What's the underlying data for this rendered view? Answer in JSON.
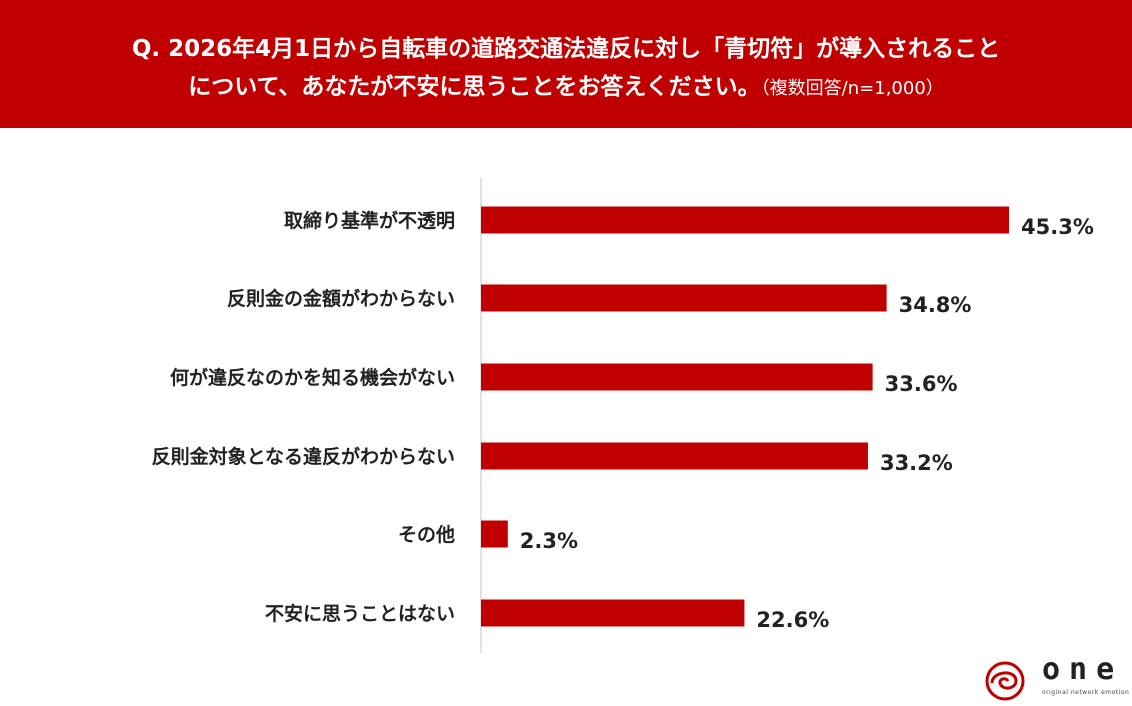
{
  "header": {
    "line1": "Q. 2026年4月1日から自転車の道路交通法違反に対し「青切符」が導入されること",
    "line2": "について、あなたが不安に思うことをお答えください。",
    "note": "（複数回答/n=1,000）"
  },
  "colors": {
    "header_bg": "#c00000",
    "bar": "#c00000",
    "text": "#222222",
    "axis": "#d9d9d9"
  },
  "chart_data": {
    "type": "bar",
    "orientation": "horizontal",
    "categories": [
      "取締り基準が不透明",
      "反則金の金額がわからない",
      "何が違反なのかを知る機会がない",
      "反則金対象となる違反がわからない",
      "その他",
      "不安に思うことはない"
    ],
    "values": [
      45.3,
      34.8,
      33.6,
      33.2,
      2.3,
      22.6
    ],
    "value_labels": [
      "45.3%",
      "34.8%",
      "33.6%",
      "33.2%",
      "2.3%",
      "22.6%"
    ],
    "unit": "%",
    "xlim": [
      0,
      45.3
    ],
    "grid": false
  },
  "logo": {
    "text": "one",
    "tagline": "original network emotion",
    "icon": "swirl-logo-icon"
  }
}
